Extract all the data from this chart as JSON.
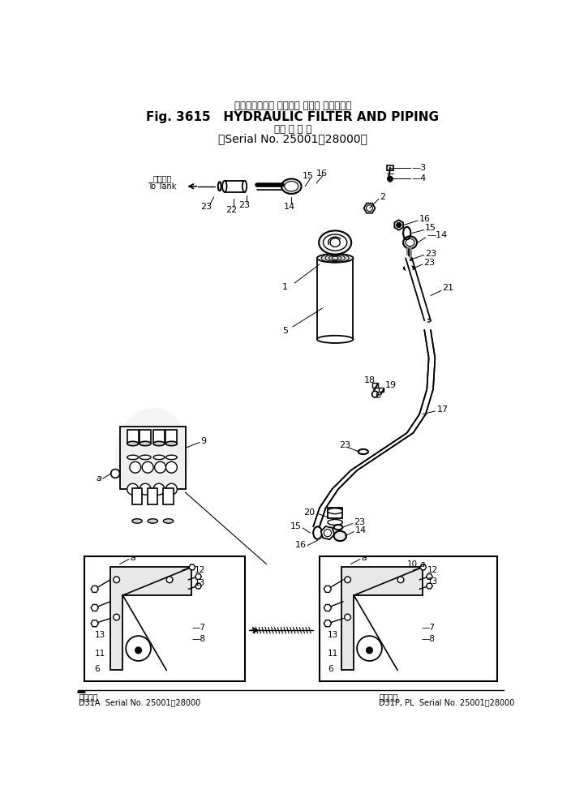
{
  "title_jp": "ハイドロリック フイルタ および パイピング",
  "title_en": "Fig. 3615   HYDRAULIC FILTER AND PIPING",
  "subtitle_jp": "適 用 号 機",
  "subtitle_sn": "Serial No. 25001～28000",
  "footer_left_model": "D31A",
  "footer_left_sn": "Serial No. 25001～28000",
  "footer_right_model": "D31P, PL",
  "footer_right_sn": "Serial No. 25001～28000",
  "footer_left_label": "適用号機",
  "footer_right_label": "適用号機",
  "bg": "#ffffff",
  "lc": "#000000"
}
